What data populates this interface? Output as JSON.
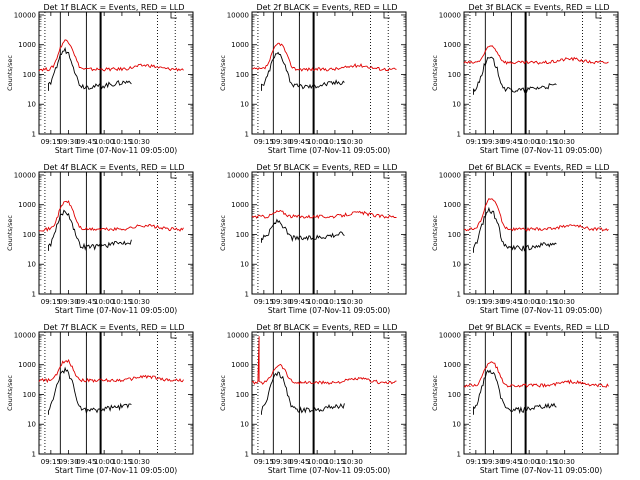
{
  "colors": {
    "events": "#000000",
    "lld": "#e00000",
    "axis": "#000000"
  },
  "common": {
    "title_suffix": "BLACK = Events, RED = LLD",
    "xlabel": "Start Time (07-Nov-11 09:05:00)",
    "ylabel": "Counts/sec",
    "xticks": [
      "09:15",
      "09:30",
      "09:45",
      "10:00",
      "10:15",
      "10:30"
    ],
    "yticks": [
      "1",
      "10",
      "100",
      "1000",
      "10000"
    ]
  },
  "chart_data": [
    {
      "type": "line",
      "panel": 1,
      "title_prefix": "Det 1f",
      "lld_base": 150,
      "lld_peak": 1400,
      "evt_base": 80,
      "evt_peak": 650,
      "spike": false
    },
    {
      "type": "line",
      "panel": 2,
      "title_prefix": "Det 2f",
      "lld_base": 150,
      "lld_peak": 1100,
      "evt_base": 80,
      "evt_peak": 500,
      "spike": false
    },
    {
      "type": "line",
      "panel": 3,
      "title_prefix": "Det 3f",
      "lld_base": 250,
      "lld_peak": 900,
      "evt_base": 60,
      "evt_peak": 350,
      "spike": false
    },
    {
      "type": "line",
      "panel": 4,
      "title_prefix": "Det 4f",
      "lld_base": 150,
      "lld_peak": 1300,
      "evt_base": 80,
      "evt_peak": 600,
      "spike": false
    },
    {
      "type": "line",
      "panel": 5,
      "title_prefix": "Det 5f",
      "lld_base": 400,
      "lld_peak": 600,
      "evt_base": 150,
      "evt_peak": 280,
      "spike": false
    },
    {
      "type": "line",
      "panel": 6,
      "title_prefix": "Det 6f",
      "lld_base": 150,
      "lld_peak": 1600,
      "evt_base": 70,
      "evt_peak": 650,
      "spike": false
    },
    {
      "type": "line",
      "panel": 7,
      "title_prefix": "Det 7f",
      "lld_base": 300,
      "lld_peak": 1400,
      "evt_base": 60,
      "evt_peak": 650,
      "spike": false
    },
    {
      "type": "line",
      "panel": 8,
      "title_prefix": "Det 8f",
      "lld_base": 250,
      "lld_peak": 1000,
      "evt_base": 60,
      "evt_peak": 500,
      "spike": true
    },
    {
      "type": "line",
      "panel": 9,
      "title_prefix": "Det 9f",
      "lld_base": 200,
      "lld_peak": 1300,
      "evt_base": 60,
      "evt_peak": 600,
      "spike": false
    }
  ]
}
